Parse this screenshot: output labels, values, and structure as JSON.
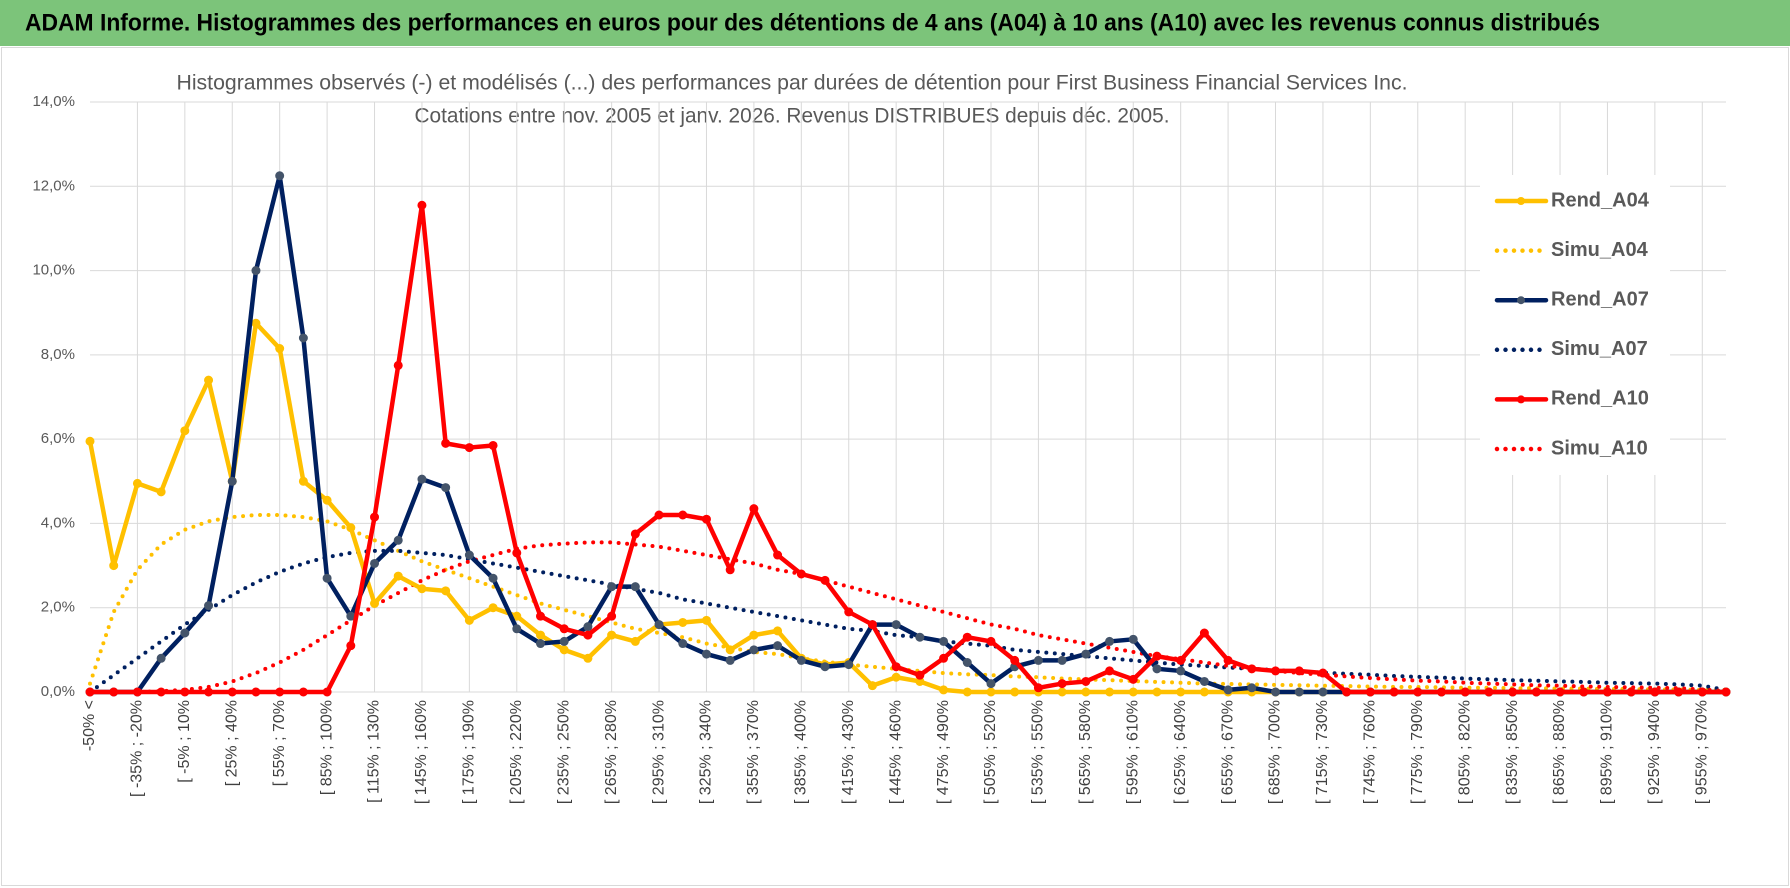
{
  "header": {
    "title": "ADAM Informe. Histogrammes des performances en euros pour des détentions de 4 ans (A04) à 10 ans (A10) avec les revenus connus distribués"
  },
  "chart_data": {
    "type": "line",
    "title": [
      "Histogrammes observés (-) et modélisés (...) des performances par durées de détention pour First Business Financial Services Inc.",
      "Cotations entre nov. 2005 et janv. 2026. Revenus DISTRIBUES depuis déc. 2005."
    ],
    "categories": [
      "-50% <",
      null,
      "[ -35% ; -20%",
      null,
      "[ -5% ; 10%",
      null,
      "[ 25% ; 40%",
      null,
      "[ 55% ; 70%",
      null,
      "[ 85% ; 100%",
      null,
      "[ 115% ; 130%",
      null,
      "[ 145% ; 160%",
      null,
      "[ 175% ; 190%",
      null,
      "[ 205% ; 220%",
      null,
      "[ 235% ; 250%",
      null,
      "[ 265% ; 280%",
      null,
      "[ 295% ; 310%",
      null,
      "[ 325% ; 340%",
      null,
      "[ 355% ; 370%",
      null,
      "[ 385% ; 400%",
      null,
      "[ 415% ; 430%",
      null,
      "[ 445% ; 460%",
      null,
      "[ 475% ; 490%",
      null,
      "[ 505% ; 520%",
      null,
      "[ 535% ; 550%",
      null,
      "[ 565% ; 580%",
      null,
      "[ 595% ; 610%",
      null,
      "[ 625% ; 640%",
      null,
      "[ 655% ; 670%",
      null,
      "[ 685% ; 700%",
      null,
      "[ 715% ; 730%",
      null,
      "[ 745% ; 760%",
      null,
      "[ 775% ; 790%",
      null,
      "[ 805% ; 820%",
      null,
      "[ 835% ; 850%",
      null,
      "[ 865% ; 880%",
      null,
      "[ 895% ; 910%",
      null,
      "[ 925% ; 940%",
      null,
      "[ 955% ; 970%",
      null
    ],
    "ylim": [
      0,
      14
    ],
    "yticks": [
      {
        "value": 0,
        "label": "0,0%"
      },
      {
        "value": 2,
        "label": "2,0%"
      },
      {
        "value": 4,
        "label": "4,0%"
      },
      {
        "value": 6,
        "label": "6,0%"
      },
      {
        "value": 8,
        "label": "8,0%"
      },
      {
        "value": 10,
        "label": "10,0%"
      },
      {
        "value": 12,
        "label": "12,0%"
      },
      {
        "value": 14,
        "label": "14,0%"
      }
    ],
    "grid": true,
    "legend": "right",
    "series": [
      {
        "name": "Rend_A04",
        "color": "#ffc000",
        "dotted": false,
        "marker": true,
        "values": [
          5.95,
          3.0,
          4.95,
          4.75,
          6.2,
          7.4,
          5.0,
          8.75,
          8.15,
          5.0,
          4.55,
          3.9,
          2.1,
          2.75,
          2.45,
          2.4,
          1.7,
          2.0,
          1.8,
          1.35,
          1.0,
          0.8,
          1.35,
          1.2,
          1.6,
          1.65,
          1.7,
          1.0,
          1.35,
          1.45,
          0.8,
          0.65,
          0.7,
          0.15,
          0.35,
          0.25,
          0.05,
          0,
          0,
          0,
          0,
          0,
          0,
          0,
          0,
          0,
          0,
          0,
          0,
          0,
          0,
          0,
          0,
          0,
          0,
          0,
          0,
          0,
          0,
          0,
          0,
          0,
          0,
          0,
          0,
          0,
          0,
          0,
          0,
          0
        ]
      },
      {
        "name": "Simu_A04",
        "color": "#ffc000",
        "dotted": true,
        "marker": false,
        "values": [
          0.2,
          1.9,
          2.9,
          3.5,
          3.85,
          4.05,
          4.15,
          4.2,
          4.2,
          4.15,
          4.05,
          3.85,
          3.6,
          3.35,
          3.1,
          2.9,
          2.7,
          2.5,
          2.3,
          2.1,
          1.95,
          1.8,
          1.65,
          1.5,
          1.4,
          1.3,
          1.15,
          1.05,
          0.95,
          0.9,
          0.8,
          0.72,
          0.65,
          0.6,
          0.55,
          0.5,
          0.45,
          0.42,
          0.4,
          0.37,
          0.35,
          0.32,
          0.3,
          0.28,
          0.26,
          0.24,
          0.22,
          0.2,
          0.19,
          0.18,
          0.17,
          0.16,
          0.15,
          0.14,
          0.13,
          0.12,
          0.12,
          0.11,
          0.1,
          0.1,
          0.09,
          0.09,
          0.08,
          0.08,
          0.07,
          0.07,
          0.06,
          0.06,
          0.05,
          0.05
        ]
      },
      {
        "name": "Rend_A07",
        "color": "#002060",
        "dotted": false,
        "marker": true,
        "values": [
          0,
          0,
          0,
          0.8,
          1.4,
          2.05,
          5.0,
          10.0,
          12.25,
          8.4,
          2.7,
          1.8,
          3.05,
          3.6,
          5.05,
          4.85,
          3.25,
          2.7,
          1.5,
          1.15,
          1.2,
          1.55,
          2.5,
          2.5,
          1.6,
          1.15,
          0.9,
          0.75,
          1.0,
          1.1,
          0.75,
          0.6,
          0.65,
          1.6,
          1.6,
          1.3,
          1.2,
          0.7,
          0.2,
          0.6,
          0.75,
          0.75,
          0.9,
          1.2,
          1.25,
          0.55,
          0.5,
          0.25,
          0.05,
          0.1,
          0,
          0,
          0,
          0,
          0,
          0,
          0,
          0,
          0,
          0,
          0,
          0,
          0,
          0,
          0,
          0,
          0,
          0,
          0,
          0
        ]
      },
      {
        "name": "Simu_A07",
        "color": "#002060",
        "dotted": true,
        "marker": false,
        "values": [
          0,
          0.4,
          0.8,
          1.2,
          1.6,
          1.95,
          2.3,
          2.6,
          2.85,
          3.05,
          3.2,
          3.3,
          3.35,
          3.35,
          3.3,
          3.25,
          3.15,
          3.05,
          2.95,
          2.85,
          2.75,
          2.65,
          2.55,
          2.45,
          2.35,
          2.2,
          2.1,
          2.0,
          1.9,
          1.8,
          1.7,
          1.6,
          1.5,
          1.45,
          1.35,
          1.3,
          1.2,
          1.15,
          1.1,
          1.0,
          0.95,
          0.9,
          0.85,
          0.8,
          0.75,
          0.7,
          0.65,
          0.62,
          0.58,
          0.55,
          0.52,
          0.49,
          0.46,
          0.43,
          0.41,
          0.38,
          0.36,
          0.34,
          0.32,
          0.3,
          0.28,
          0.27,
          0.25,
          0.24,
          0.22,
          0.21,
          0.2,
          0.18,
          0.15,
          0.05
        ]
      },
      {
        "name": "Rend_A10",
        "color": "#ff0000",
        "dotted": false,
        "marker": true,
        "values": [
          0,
          0,
          0,
          0,
          0,
          0,
          0,
          0,
          0,
          0,
          0,
          1.1,
          4.15,
          7.75,
          11.55,
          5.9,
          5.8,
          5.85,
          3.3,
          1.8,
          1.5,
          1.35,
          1.8,
          3.75,
          4.2,
          4.2,
          4.1,
          2.9,
          4.35,
          3.25,
          2.8,
          2.65,
          1.9,
          1.6,
          0.6,
          0.4,
          0.8,
          1.3,
          1.2,
          0.75,
          0.1,
          0.2,
          0.25,
          0.5,
          0.3,
          0.85,
          0.75,
          1.4,
          0.75,
          0.55,
          0.5,
          0.5,
          0.45,
          0,
          0,
          0,
          0,
          0,
          0,
          0,
          0,
          0,
          0,
          0,
          0,
          0,
          0,
          0,
          0,
          0
        ]
      },
      {
        "name": "Simu_A10",
        "color": "#ff0000",
        "dotted": true,
        "marker": false,
        "values": [
          0,
          0,
          0,
          0.02,
          0.05,
          0.12,
          0.25,
          0.45,
          0.7,
          1.0,
          1.35,
          1.7,
          2.05,
          2.35,
          2.65,
          2.9,
          3.1,
          3.25,
          3.4,
          3.48,
          3.52,
          3.55,
          3.55,
          3.5,
          3.45,
          3.35,
          3.25,
          3.15,
          3.05,
          2.9,
          2.8,
          2.65,
          2.5,
          2.35,
          2.2,
          2.05,
          1.9,
          1.75,
          1.6,
          1.5,
          1.35,
          1.25,
          1.15,
          1.05,
          0.95,
          0.85,
          0.78,
          0.7,
          0.62,
          0.56,
          0.5,
          0.45,
          0.41,
          0.37,
          0.33,
          0.3,
          0.27,
          0.25,
          0.22,
          0.2,
          0.18,
          0.16,
          0.15,
          0.13,
          0.12,
          0.11,
          0.1,
          0.09,
          0.06,
          0.02
        ]
      }
    ]
  }
}
